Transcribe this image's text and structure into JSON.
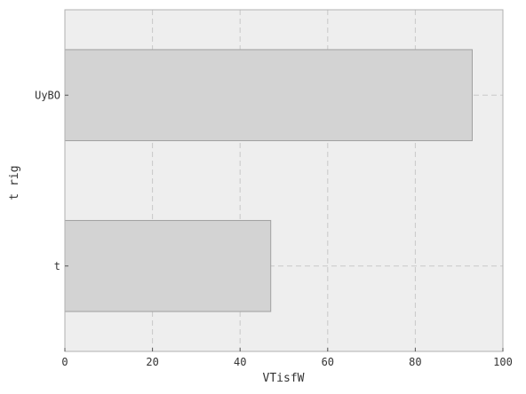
{
  "chart_data": {
    "type": "bar",
    "orientation": "horizontal",
    "categories": [
      "UyBO",
      "t"
    ],
    "values": [
      93,
      47
    ],
    "title": "",
    "xlabel": "VTisfW",
    "ylabel": "t rig",
    "xlim": [
      0,
      100
    ],
    "xticks": [
      0,
      20,
      40,
      60,
      80,
      100
    ],
    "grid": true,
    "colors": {
      "plot_background": "#eeeeee",
      "bar_fill": "#d3d3d3",
      "bar_edge": "#a0a0a0",
      "grid": "#c8c8c8",
      "frame": "#b0b0b0"
    }
  }
}
